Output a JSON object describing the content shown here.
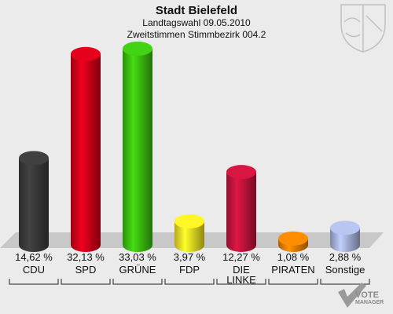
{
  "header": {
    "title": "Stadt Bielefeld",
    "subtitle1": "Landtagswahl 09.05.2010",
    "subtitle2": "Zweitstimmen Stimmbezirk 004.2"
  },
  "branding": {
    "line1": "VOTE",
    "line2": "MANAGER",
    "icon": "vote-check-icon"
  },
  "emblem": {
    "icon": "nrw-coat-of-arms-icon"
  },
  "colors": {
    "background": "#ebebeb",
    "floor": "#c8c8c8"
  },
  "chart_data": {
    "type": "bar",
    "title": "Stadt Bielefeld",
    "categories": [
      "CDU",
      "SPD",
      "GRÜNE",
      "FDP",
      "DIE LINKE",
      "PIRATEN",
      "Sonstige"
    ],
    "values": [
      14.62,
      32.13,
      33.03,
      3.97,
      12.27,
      1.08,
      2.88
    ],
    "value_labels": [
      "14,62 %",
      "32,13 %",
      "33,03 %",
      "3,97 %",
      "12,27 %",
      "1,08 %",
      "2,88 %"
    ],
    "colors": [
      "#3a3a3a",
      "#d20019",
      "#3cc010",
      "#f2e024",
      "#c3143c",
      "#f08000",
      "#a8b4dc"
    ],
    "ylim": [
      0,
      35
    ],
    "grid": false,
    "legend": "none"
  }
}
